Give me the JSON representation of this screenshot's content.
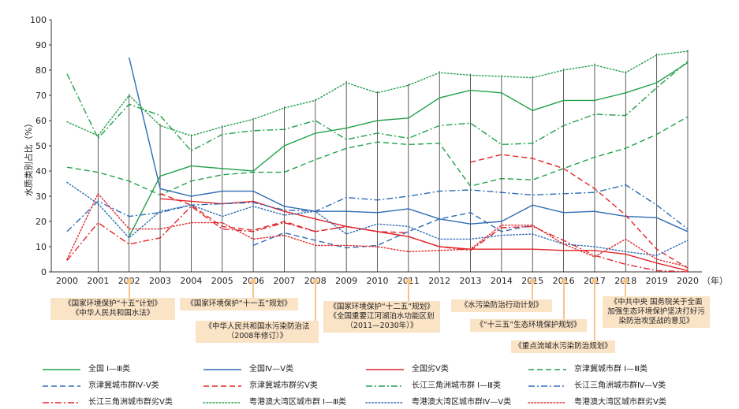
{
  "chart_data": {
    "type": "line",
    "ylabel": "水质类别占比（%）",
    "xunit": "（年）",
    "ylim": [
      0,
      100
    ],
    "yticks": [
      0,
      10,
      20,
      30,
      40,
      50,
      60,
      70,
      80,
      90,
      100
    ],
    "x": [
      "2000",
      "2001",
      "2002",
      "2003",
      "2004",
      "2005",
      "2006",
      "2007",
      "2008",
      "2009",
      "2010",
      "2011",
      "2012",
      "2013",
      "2014",
      "2015",
      "2016",
      "2017",
      "2018",
      "2019",
      "2020"
    ],
    "series": [
      {
        "name": "全国 Ⅰ—Ⅲ类",
        "color": "#22a04b",
        "dash": "solid",
        "start": 2,
        "values": [
          null,
          null,
          14,
          38,
          42,
          41,
          40,
          50,
          55,
          57,
          60,
          61,
          69,
          72,
          71,
          64,
          68,
          68,
          71,
          75,
          83
        ]
      },
      {
        "name": "全国Ⅳ—Ⅴ类",
        "color": "#2e6cb5",
        "dash": "solid",
        "start": 2,
        "values": [
          null,
          null,
          85,
          33,
          30,
          32,
          32,
          26,
          24,
          24,
          23.5,
          25,
          21,
          19,
          20,
          26.5,
          23.5,
          24,
          22,
          21.5,
          16
        ]
      },
      {
        "name": "全国劣Ⅴ类",
        "color": "#e1262b",
        "dash": "solid",
        "start": 3,
        "values": [
          null,
          null,
          null,
          29,
          28,
          27,
          28,
          24,
          21,
          18,
          16,
          14,
          10,
          9,
          9,
          9,
          8.5,
          8.5,
          7,
          3.5,
          0.5
        ]
      },
      {
        "name": "京津冀城市群 Ⅰ—Ⅲ类",
        "color": "#22a04b",
        "dash": "long",
        "start": 0,
        "values": [
          41.5,
          39.5,
          36,
          30.5,
          36,
          38.5,
          39.5,
          39.5,
          44.5,
          49,
          51.5,
          50.5,
          51,
          34,
          37,
          36.5,
          41,
          45.5,
          49,
          54.5,
          61.5
        ]
      },
      {
        "name": "京津冀城市群Ⅳ-Ⅴ类",
        "color": "#2e6cb5",
        "dash": "long",
        "start": 6,
        "values": [
          null,
          null,
          null,
          null,
          null,
          null,
          10.5,
          15.5,
          12.5,
          9.5,
          10.5,
          16,
          21,
          23.5,
          16,
          18.5,
          null,
          null,
          null,
          null,
          null
        ]
      },
      {
        "name": "京津冀城市群劣Ⅴ类",
        "color": "#e1262b",
        "dash": "long",
        "start": 3,
        "values": [
          null,
          null,
          null,
          31,
          26.5,
          18,
          16.5,
          20,
          16,
          18,
          16,
          15.5,
          null,
          43.5,
          46.5,
          45,
          41,
          33,
          22.5,
          9,
          1.5
        ]
      },
      {
        "name": "长江三角洲城市群 Ⅰ—Ⅲ类",
        "color": "#22a04b",
        "dash": "dashdot",
        "start": 0,
        "values": [
          78.5,
          53,
          66.5,
          62,
          48,
          54.5,
          56,
          56.5,
          60,
          52.5,
          55,
          53,
          58,
          59,
          50.5,
          51,
          58,
          62.5,
          62,
          73,
          83.5
        ]
      },
      {
        "name": "长江三角洲城市群Ⅳ—Ⅴ类",
        "color": "#2e6cb5",
        "dash": "dashdot",
        "start": 0,
        "values": [
          16,
          28,
          22,
          23.5,
          26.5,
          27,
          27.5,
          24.5,
          24,
          29.5,
          28.5,
          30,
          32,
          32.5,
          31.5,
          30.5,
          31,
          31.5,
          34.5,
          26.5,
          17
        ]
      },
      {
        "name": "长江三角洲城市群劣Ⅴ类",
        "color": "#e1262b",
        "dash": "dashdot",
        "start": 0,
        "values": [
          4.5,
          19.5,
          11,
          13.5,
          26,
          17,
          16,
          19.5,
          16,
          18,
          16,
          14,
          10,
          8.5,
          17.5,
          18,
          12.5,
          6.5,
          3,
          0.5,
          0
        ]
      },
      {
        "name": "粤港澳大湾区城市群 Ⅰ—Ⅲ类",
        "color": "#22a04b",
        "dash": "dot",
        "start": 0,
        "values": [
          59.5,
          54,
          70,
          58,
          54,
          57.5,
          60.5,
          65,
          68,
          75,
          71,
          74,
          79,
          78,
          77.5,
          77,
          80,
          82,
          79,
          86,
          87.5
        ]
      },
      {
        "name": "粤港澳大湾区城市群Ⅳ—Ⅴ类",
        "color": "#2e6cb5",
        "dash": "dot",
        "start": 0,
        "values": [
          35.5,
          27,
          13.5,
          24,
          26.5,
          22,
          26,
          22.5,
          24,
          15,
          19,
          18,
          13,
          13,
          14.5,
          15,
          11,
          10,
          8,
          6.5,
          12.5
        ]
      },
      {
        "name": "粤港澳大湾区城市群劣Ⅴ类",
        "color": "#e1262b",
        "dash": "dot",
        "start": 0,
        "values": [
          5,
          31,
          17,
          17,
          19.5,
          19.5,
          13,
          14.5,
          10.5,
          10.5,
          10,
          8,
          8.5,
          9,
          18.5,
          18.5,
          11,
          6,
          13,
          5,
          2
        ]
      }
    ],
    "annotations": [
      {
        "text": "《国家环境保护“十五”计划》\n《中华人民共和国水法》",
        "year": "2002"
      },
      {
        "text": "《国家环境保护“十一五”规划》",
        "year": "2006"
      },
      {
        "text": "《中华人民共和国水污染防治法\n（2008年修订）》",
        "year": "2008"
      },
      {
        "text": "《国家环境保护“十二五”规划》\n《全国重要江河湖泊水功能区划\n（2011—2030年）》",
        "year": "2011"
      },
      {
        "text": "《水污染防治行动计划》",
        "year": "2015"
      },
      {
        "text": "《“十三五”生态环境保护规划》",
        "year": "2016"
      },
      {
        "text": "《重点流域水污染防治规划》",
        "year": "2017"
      },
      {
        "text": "《中共中央 国务院关于全面\n加强生态环境保护坚决打好污\n染防治攻坚战的意见》",
        "year": "2018"
      }
    ]
  }
}
